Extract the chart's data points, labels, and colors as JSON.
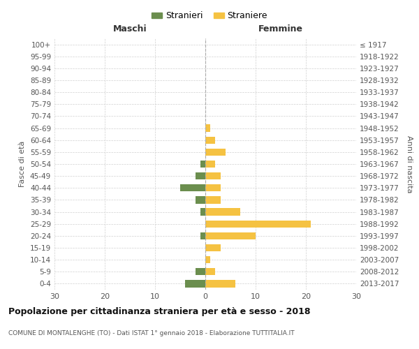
{
  "age_groups": [
    "0-4",
    "5-9",
    "10-14",
    "15-19",
    "20-24",
    "25-29",
    "30-34",
    "35-39",
    "40-44",
    "45-49",
    "50-54",
    "55-59",
    "60-64",
    "65-69",
    "70-74",
    "75-79",
    "80-84",
    "85-89",
    "90-94",
    "95-99",
    "100+"
  ],
  "birth_years": [
    "2013-2017",
    "2008-2012",
    "2003-2007",
    "1998-2002",
    "1993-1997",
    "1988-1992",
    "1983-1987",
    "1978-1982",
    "1973-1977",
    "1968-1972",
    "1963-1967",
    "1958-1962",
    "1953-1957",
    "1948-1952",
    "1943-1947",
    "1938-1942",
    "1933-1937",
    "1928-1932",
    "1923-1927",
    "1918-1922",
    "≤ 1917"
  ],
  "maschi": [
    4,
    2,
    0,
    0,
    1,
    0,
    1,
    2,
    5,
    2,
    1,
    0,
    0,
    0,
    0,
    0,
    0,
    0,
    0,
    0,
    0
  ],
  "femmine": [
    6,
    2,
    1,
    3,
    10,
    21,
    7,
    3,
    3,
    3,
    2,
    4,
    2,
    1,
    0,
    0,
    0,
    0,
    0,
    0,
    0
  ],
  "color_maschi": "#6b8e4e",
  "color_femmine": "#f5c242",
  "title": "Popolazione per cittadinanza straniera per età e sesso - 2018",
  "subtitle": "COMUNE DI MONTALENGHE (TO) - Dati ISTAT 1° gennaio 2018 - Elaborazione TUTTITALIA.IT",
  "xlabel_left": "Maschi",
  "xlabel_right": "Femmine",
  "ylabel_left": "Fasce di età",
  "ylabel_right": "Anni di nascita",
  "legend_maschi": "Stranieri",
  "legend_femmine": "Straniere",
  "xlim": 30,
  "background_color": "#ffffff",
  "grid_color": "#d0d0d0"
}
